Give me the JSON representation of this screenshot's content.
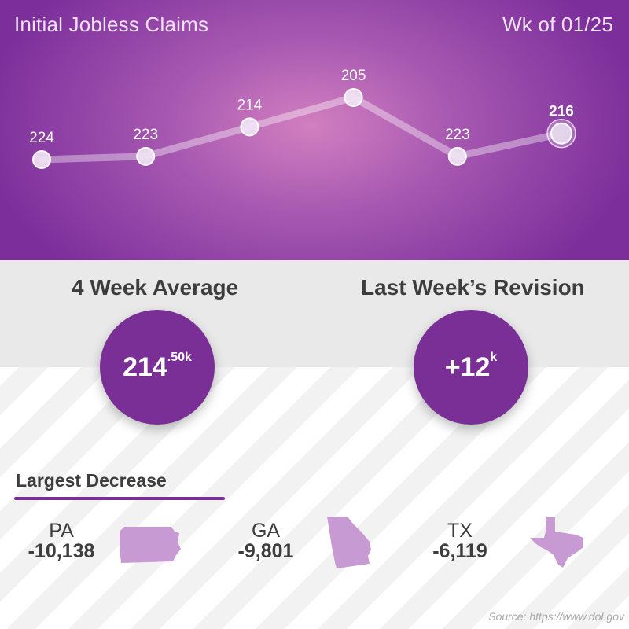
{
  "header": {
    "title": "Initial Jobless Claims",
    "week": "Wk of 01/25"
  },
  "chart_data": {
    "type": "line",
    "title": "Initial Jobless Claims",
    "x": [
      "1",
      "2",
      "3",
      "4",
      "5",
      "6"
    ],
    "series": [
      {
        "values": [
          224,
          223,
          214,
          205,
          223,
          216
        ]
      }
    ],
    "data_labels": [
      "224",
      "223",
      "214",
      "205",
      "223",
      "216"
    ],
    "highlight_last": true,
    "grid": false,
    "xlabel": "",
    "ylabel": ""
  },
  "stats": {
    "four_week": {
      "title": "4 Week Average",
      "value": "214",
      "suffix": ".50k"
    },
    "revision": {
      "title": "Last Week’s Revision",
      "value": "+12",
      "suffix": "k"
    }
  },
  "largest_decrease": {
    "title": "Largest Decrease",
    "states": [
      {
        "abbr": "PA",
        "change": "-10,138"
      },
      {
        "abbr": "GA",
        "change": "-9,801"
      },
      {
        "abbr": "TX",
        "change": "-6,119"
      }
    ]
  },
  "source": "Source: https://www.dol.gov",
  "colors": {
    "accent": "#7a2f97",
    "map": "#c79ad3",
    "text": "#3d3d3d"
  }
}
